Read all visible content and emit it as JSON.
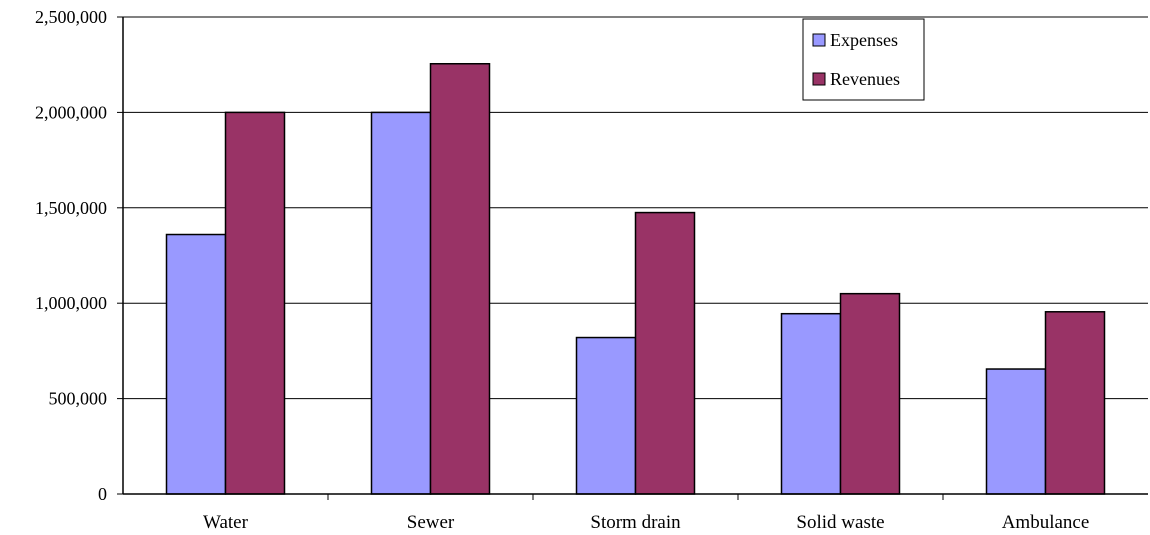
{
  "chart_data": {
    "type": "bar",
    "categories": [
      "Water",
      "Sewer",
      "Storm drain",
      "Solid waste",
      "Ambulance"
    ],
    "series": [
      {
        "name": "Expenses",
        "values": [
          1360000,
          2000000,
          820000,
          945000,
          655000
        ],
        "color": "#9999FF"
      },
      {
        "name": "Revenues",
        "values": [
          2000000,
          2255000,
          1475000,
          1050000,
          955000
        ],
        "color": "#993366"
      }
    ],
    "y_ticks": [
      {
        "value": 0,
        "label": "0"
      },
      {
        "value": 500000,
        "label": "500,000"
      },
      {
        "value": 1000000,
        "label": "1,000,000"
      },
      {
        "value": 1500000,
        "label": "1,500,000"
      },
      {
        "value": 2000000,
        "label": "2,000,000"
      },
      {
        "value": 2500000,
        "label": "2,500,000"
      }
    ],
    "ylim": [
      0,
      2500000
    ],
    "grid": true,
    "legend_position": "top-right"
  }
}
